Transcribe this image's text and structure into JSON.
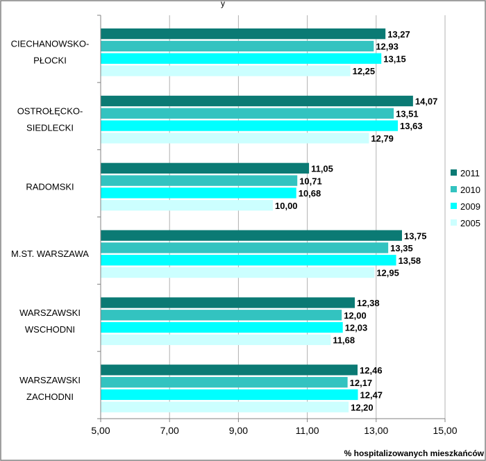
{
  "top_text": "y",
  "chart_data": {
    "type": "bar",
    "orientation": "horizontal",
    "categories": [
      [
        "CIECHANOWSKO-",
        "PŁOCKI"
      ],
      [
        "OSTROŁĘCKO-",
        "SIEDLECKI"
      ],
      [
        "RADOMSKI"
      ],
      [
        "M.ST. WARSZAWA"
      ],
      [
        "WARSZAWSKI",
        "WSCHODNI"
      ],
      [
        "WARSZAWSKI",
        "ZACHODNI"
      ]
    ],
    "series": [
      {
        "name": "2011",
        "color": "#0b7a74",
        "values": [
          13.27,
          14.07,
          11.05,
          13.75,
          12.38,
          12.46
        ],
        "labels": [
          "13,27",
          "14,07",
          "11,05",
          "13,75",
          "12,38",
          "12,46"
        ]
      },
      {
        "name": "2010",
        "color": "#33c3c0",
        "values": [
          12.93,
          13.51,
          10.71,
          13.35,
          12.0,
          12.17
        ],
        "labels": [
          "12,93",
          "13,51",
          "10,71",
          "13,35",
          "12,00",
          "12,17"
        ]
      },
      {
        "name": "2009",
        "color": "#00ffff",
        "values": [
          13.15,
          13.63,
          10.68,
          13.58,
          12.03,
          12.47
        ],
        "labels": [
          "13,15",
          "13,63",
          "10,68",
          "13,58",
          "12,03",
          "12,47"
        ]
      },
      {
        "name": "2005",
        "color": "#ccffff",
        "values": [
          12.25,
          12.79,
          10.0,
          12.95,
          11.68,
          12.2
        ],
        "labels": [
          "12,25",
          "12,79",
          "10,00",
          "12,95",
          "11,68",
          "12,20"
        ]
      }
    ],
    "x_ticks": [
      5,
      7,
      9,
      11,
      13,
      15
    ],
    "x_tick_labels": [
      "5,00",
      "7,00",
      "9,00",
      "11,00",
      "13,00",
      "15,00"
    ],
    "xlim": [
      5,
      15
    ],
    "xlabel": "% hospitalizowanych mieszkańców",
    "ylabel": "",
    "grid": "vertical",
    "legend_position": "right",
    "legend_order": [
      "2011",
      "2010",
      "2009",
      "2005"
    ]
  }
}
